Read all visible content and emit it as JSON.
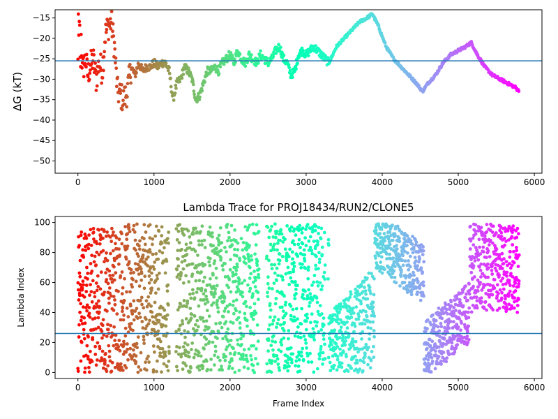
{
  "chart_data": [
    {
      "type": "scatter",
      "title": "",
      "xlabel": "",
      "ylabel": "ΔG (kT)",
      "xlim": [
        -300,
        6100
      ],
      "ylim": [
        -53,
        -13
      ],
      "xticks": [
        0,
        1000,
        2000,
        3000,
        4000,
        5000,
        6000
      ],
      "yticks": [
        -50,
        -45,
        -40,
        -35,
        -30,
        -25,
        -20,
        -15
      ],
      "xtick_labels": [
        "0",
        "1000",
        "2000",
        "3000",
        "4000",
        "5000",
        "6000"
      ],
      "ytick_labels": [
        "−50",
        "−45",
        "−40",
        "−35",
        "−30",
        "−25",
        "−20",
        "−15"
      ],
      "hline": -25.5,
      "hline_color": "#1f77b4",
      "colormap": "rainbow (red at frame 0 → purple at last frame)",
      "point_count": 5800,
      "trace": [
        [
          0,
          -22
        ],
        [
          30,
          -14
        ],
        [
          60,
          -28
        ],
        [
          100,
          -25
        ],
        [
          130,
          -29
        ],
        [
          160,
          -27
        ],
        [
          200,
          -25
        ],
        [
          240,
          -30
        ],
        [
          280,
          -26
        ],
        [
          320,
          -28
        ],
        [
          360,
          -19
        ],
        [
          400,
          -17
        ],
        [
          440,
          -16
        ],
        [
          480,
          -22
        ],
        [
          520,
          -33
        ],
        [
          560,
          -34
        ],
        [
          600,
          -35
        ],
        [
          650,
          -33
        ],
        [
          700,
          -27
        ],
        [
          750,
          -29
        ],
        [
          800,
          -26
        ],
        [
          850,
          -28
        ],
        [
          900,
          -27
        ],
        [
          950,
          -27
        ],
        [
          1000,
          -26
        ],
        [
          1050,
          -27
        ],
        [
          1100,
          -26
        ],
        [
          1150,
          -26
        ],
        [
          1200,
          -28
        ],
        [
          1250,
          -35
        ],
        [
          1300,
          -31
        ],
        [
          1350,
          -30
        ],
        [
          1400,
          -27
        ],
        [
          1450,
          -28
        ],
        [
          1500,
          -30
        ],
        [
          1550,
          -35
        ],
        [
          1600,
          -34
        ],
        [
          1650,
          -31
        ],
        [
          1700,
          -28
        ],
        [
          1750,
          -28
        ],
        [
          1800,
          -27
        ],
        [
          1850,
          -28
        ],
        [
          1900,
          -26
        ],
        [
          1950,
          -25
        ],
        [
          2000,
          -24
        ],
        [
          2050,
          -26
        ],
        [
          2100,
          -23
        ],
        [
          2150,
          -25
        ],
        [
          2200,
          -26
        ],
        [
          2250,
          -24
        ],
        [
          2300,
          -25
        ],
        [
          2350,
          -26
        ],
        [
          2400,
          -24
        ],
        [
          2450,
          -25
        ],
        [
          2500,
          -26
        ],
        [
          2550,
          -25
        ],
        [
          2600,
          -23
        ],
        [
          2650,
          -22
        ],
        [
          2700,
          -25
        ],
        [
          2750,
          -26
        ],
        [
          2800,
          -29
        ],
        [
          2850,
          -28
        ],
        [
          2900,
          -24
        ],
        [
          2950,
          -23
        ],
        [
          3000,
          -24
        ],
        [
          3050,
          -23
        ],
        [
          3100,
          -22
        ],
        [
          3150,
          -23
        ],
        [
          3200,
          -24
        ],
        [
          3250,
          -25
        ],
        [
          3300,
          -26
        ],
        [
          3400,
          -22
        ],
        [
          3500,
          -20
        ],
        [
          3600,
          -18
        ],
        [
          3700,
          -16
        ],
        [
          3800,
          -15
        ],
        [
          3870,
          -14
        ],
        [
          3950,
          -17
        ],
        [
          4050,
          -22
        ],
        [
          4150,
          -25
        ],
        [
          4250,
          -27
        ],
        [
          4350,
          -29
        ],
        [
          4450,
          -31
        ],
        [
          4530,
          -33
        ],
        [
          4600,
          -31
        ],
        [
          4700,
          -29
        ],
        [
          4800,
          -26
        ],
        [
          4900,
          -24
        ],
        [
          5000,
          -23
        ],
        [
          5100,
          -22
        ],
        [
          5170,
          -21
        ],
        [
          5250,
          -24
        ],
        [
          5350,
          -27
        ],
        [
          5450,
          -29
        ],
        [
          5550,
          -30
        ],
        [
          5650,
          -31
        ],
        [
          5750,
          -32
        ],
        [
          5800,
          -33
        ]
      ]
    },
    {
      "type": "scatter",
      "title": "Lambda Trace for PROJ18434/RUN2/CLONE5",
      "xlabel": "Frame Index",
      "ylabel": "Lambda Index",
      "xlim": [
        -300,
        6100
      ],
      "ylim": [
        -4,
        104
      ],
      "xticks": [
        0,
        1000,
        2000,
        3000,
        4000,
        5000,
        6000
      ],
      "yticks": [
        0,
        20,
        40,
        60,
        80,
        100
      ],
      "xtick_labels": [
        "0",
        "1000",
        "2000",
        "3000",
        "4000",
        "5000",
        "6000"
      ],
      "ytick_labels": [
        "0",
        "20",
        "40",
        "60",
        "80",
        "100"
      ],
      "hline": 26,
      "hline_color": "#1f77b4",
      "colormap": "rainbow (red at frame 0 → purple at last frame)",
      "point_count": 5800,
      "segments": [
        {
          "start": 0,
          "end": 3300,
          "lambda_range": [
            0,
            99
          ]
        },
        {
          "start": 3300,
          "end": 3900,
          "lambda_range": [
            0,
            70
          ]
        },
        {
          "start": 3900,
          "end": 4550,
          "lambda_range": [
            55,
            99
          ]
        },
        {
          "start": 4550,
          "end": 5150,
          "lambda_range": [
            0,
            50
          ]
        },
        {
          "start": 5150,
          "end": 5800,
          "lambda_range": [
            40,
            99
          ]
        }
      ],
      "gaps": [
        [
          1200,
          1290
        ],
        [
          2380,
          2480
        ],
        [
          3250,
          3290
        ]
      ]
    }
  ]
}
